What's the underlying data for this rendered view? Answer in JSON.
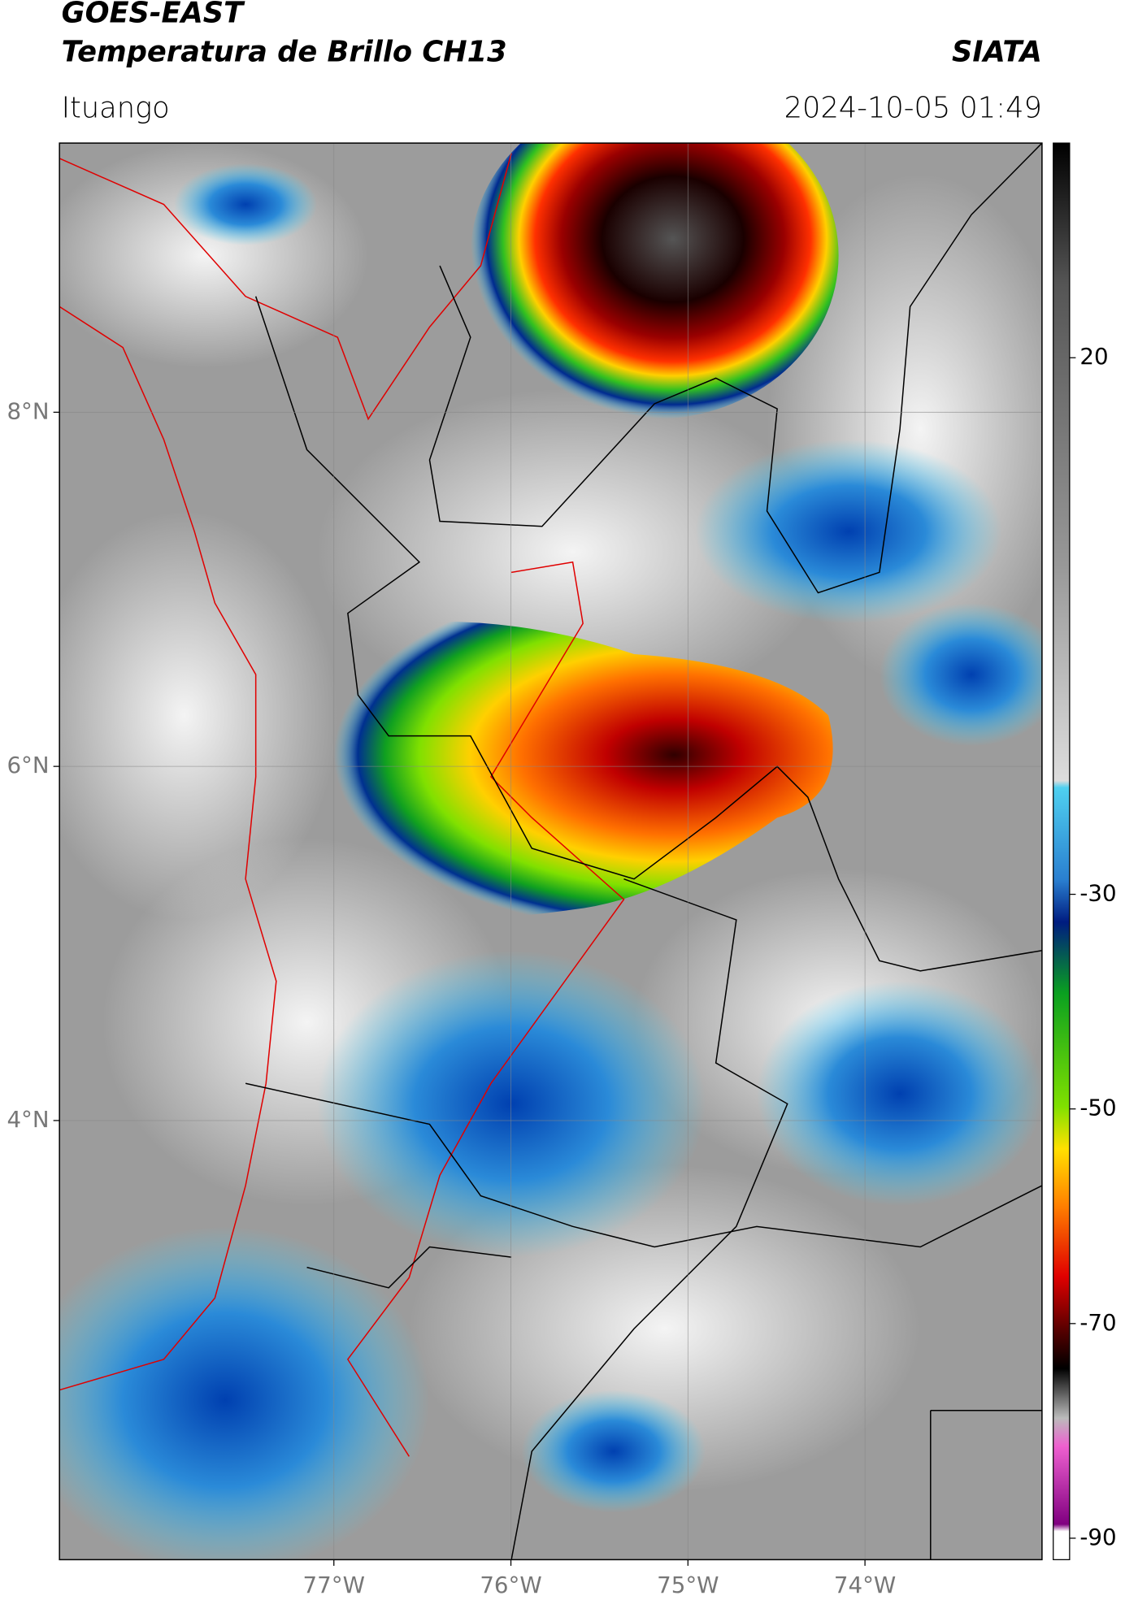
{
  "header": {
    "title": "GOES-EAST",
    "subtitle": "Temperatura de Brillo CH13",
    "agency": "SIATA",
    "location": "Ituango",
    "timestamp": "2024-10-05 01:49"
  },
  "map": {
    "xlim": [
      -78.55,
      -73.0
    ],
    "ylim": [
      1.52,
      9.52
    ],
    "xticks": [
      {
        "value": -77,
        "label": "77°W"
      },
      {
        "value": -76,
        "label": "76°W"
      },
      {
        "value": -75,
        "label": "75°W"
      },
      {
        "value": -74,
        "label": "74°W"
      }
    ],
    "yticks": [
      {
        "value": 8,
        "label": "8°N"
      },
      {
        "value": 6,
        "label": "6°N"
      },
      {
        "value": 4,
        "label": "4°N"
      }
    ],
    "grid": true
  },
  "colorbar": {
    "lim": [
      -92,
      40
    ],
    "ticks": [
      20,
      -30,
      -50,
      -70,
      -90
    ]
  }
}
